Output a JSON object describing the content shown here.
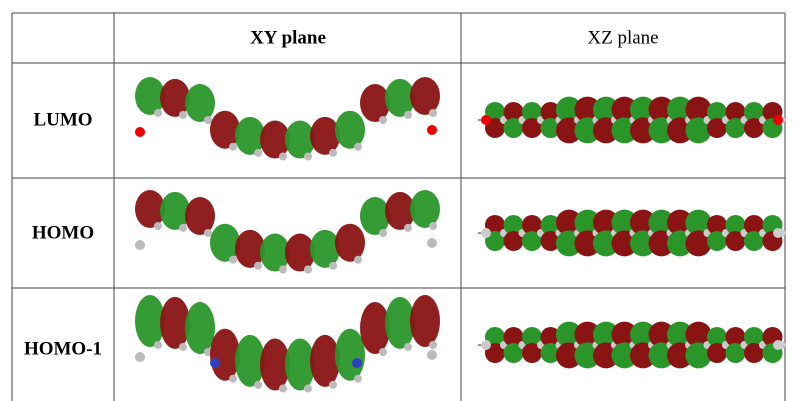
{
  "table": {
    "header": [
      "XY plane",
      "XZ plane"
    ],
    "rows": [
      "LUMO",
      "HOMO",
      "HOMO-1"
    ]
  }
}
